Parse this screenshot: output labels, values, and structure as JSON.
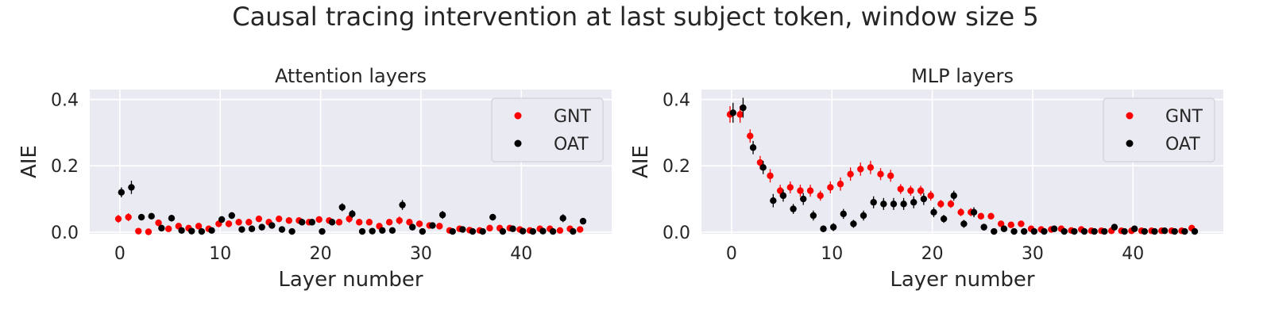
{
  "figure": {
    "title": "Causal tracing intervention at last subject token, window size 5"
  },
  "chart_data": [
    {
      "type": "scatter",
      "title": "Attention layers",
      "xlabel": "Layer number",
      "ylabel": "AIE",
      "xlim": [
        -3,
        49
      ],
      "ylim": [
        -0.005,
        0.43
      ],
      "xticks": [
        0,
        10,
        20,
        30,
        40
      ],
      "yticks": [
        0.0,
        0.2,
        0.4
      ],
      "ytick_labels": [
        "0.0",
        "0.2",
        "0.4"
      ],
      "grid": true,
      "legend_position": "top-right",
      "series": [
        {
          "name": "GNT",
          "color": "#ff0000",
          "x": [
            0,
            1,
            2,
            3,
            4,
            5,
            6,
            7,
            8,
            9,
            10,
            11,
            12,
            13,
            14,
            15,
            16,
            17,
            18,
            19,
            20,
            21,
            22,
            23,
            24,
            25,
            26,
            27,
            28,
            29,
            30,
            31,
            32,
            33,
            34,
            35,
            36,
            37,
            38,
            39,
            40,
            41,
            42,
            43,
            44,
            45,
            46
          ],
          "y": [
            0.04,
            0.045,
            0.003,
            0.001,
            0.028,
            0.01,
            0.018,
            0.012,
            0.018,
            0.01,
            0.025,
            0.025,
            0.03,
            0.03,
            0.04,
            0.03,
            0.04,
            0.035,
            0.035,
            0.03,
            0.038,
            0.035,
            0.03,
            0.04,
            0.03,
            0.03,
            0.018,
            0.03,
            0.035,
            0.03,
            0.025,
            0.02,
            0.018,
            0.005,
            0.01,
            0.006,
            0.005,
            0.012,
            0.012,
            0.012,
            0.008,
            0.005,
            0.01,
            0.01,
            0.005,
            0.01,
            0.008
          ],
          "err": [
            0.012,
            0.012,
            0.005,
            0.005,
            0.01,
            0.008,
            0.008,
            0.008,
            0.008,
            0.008,
            0.01,
            0.01,
            0.01,
            0.01,
            0.01,
            0.01,
            0.01,
            0.01,
            0.01,
            0.01,
            0.01,
            0.01,
            0.01,
            0.012,
            0.01,
            0.01,
            0.008,
            0.01,
            0.012,
            0.01,
            0.01,
            0.008,
            0.008,
            0.006,
            0.006,
            0.006,
            0.006,
            0.008,
            0.008,
            0.008,
            0.006,
            0.006,
            0.006,
            0.006,
            0.006,
            0.006,
            0.006
          ]
        },
        {
          "name": "OAT",
          "color": "#000000",
          "x": [
            0,
            1,
            2,
            3,
            4,
            5,
            6,
            7,
            8,
            9,
            10,
            11,
            12,
            13,
            14,
            15,
            16,
            17,
            18,
            19,
            20,
            21,
            22,
            23,
            24,
            25,
            26,
            27,
            28,
            29,
            30,
            31,
            32,
            33,
            34,
            35,
            36,
            37,
            38,
            39,
            40,
            41,
            42,
            43,
            44,
            45,
            46
          ],
          "y": [
            0.12,
            0.135,
            0.045,
            0.048,
            0.012,
            0.042,
            0.005,
            0.003,
            0.002,
            0.005,
            0.038,
            0.05,
            0.008,
            0.01,
            0.015,
            0.02,
            0.008,
            0.002,
            0.03,
            0.03,
            0.002,
            0.03,
            0.075,
            0.055,
            0.002,
            0.003,
            0.005,
            0.005,
            0.082,
            0.015,
            0.002,
            0.02,
            0.052,
            0.002,
            0.008,
            0.002,
            0.002,
            0.045,
            0.002,
            0.01,
            0.003,
            0.002,
            0.003,
            0.002,
            0.042,
            0.002,
            0.033
          ],
          "err": [
            0.015,
            0.02,
            0.008,
            0.008,
            0.006,
            0.01,
            0.005,
            0.005,
            0.005,
            0.005,
            0.01,
            0.01,
            0.006,
            0.006,
            0.008,
            0.008,
            0.006,
            0.005,
            0.01,
            0.01,
            0.005,
            0.01,
            0.012,
            0.012,
            0.005,
            0.005,
            0.005,
            0.005,
            0.015,
            0.008,
            0.005,
            0.008,
            0.012,
            0.005,
            0.005,
            0.005,
            0.005,
            0.01,
            0.005,
            0.006,
            0.005,
            0.005,
            0.005,
            0.005,
            0.012,
            0.005,
            0.01
          ]
        }
      ]
    },
    {
      "type": "scatter",
      "title": "MLP layers",
      "xlabel": "Layer number",
      "ylabel": "AIE",
      "xlim": [
        -3,
        49
      ],
      "ylim": [
        -0.005,
        0.43
      ],
      "xticks": [
        0,
        10,
        20,
        30,
        40
      ],
      "yticks": [
        0.0,
        0.2,
        0.4
      ],
      "ytick_labels": [
        "0.0",
        "0.2",
        "0.4"
      ],
      "grid": true,
      "legend_position": "top-right",
      "series": [
        {
          "name": "GNT",
          "color": "#ff0000",
          "x": [
            0,
            1,
            2,
            3,
            4,
            5,
            6,
            7,
            8,
            9,
            10,
            11,
            12,
            13,
            14,
            15,
            16,
            17,
            18,
            19,
            20,
            21,
            22,
            23,
            24,
            25,
            26,
            27,
            28,
            29,
            30,
            31,
            32,
            33,
            34,
            35,
            36,
            37,
            38,
            39,
            40,
            41,
            42,
            43,
            44,
            45,
            46
          ],
          "y": [
            0.355,
            0.355,
            0.29,
            0.21,
            0.17,
            0.125,
            0.135,
            0.125,
            0.125,
            0.11,
            0.135,
            0.145,
            0.175,
            0.19,
            0.195,
            0.175,
            0.17,
            0.13,
            0.125,
            0.125,
            0.11,
            0.085,
            0.085,
            0.06,
            0.06,
            0.048,
            0.048,
            0.025,
            0.022,
            0.025,
            0.01,
            0.008,
            0.008,
            0.01,
            0.005,
            0.008,
            0.004,
            0.004,
            0.004,
            0.004,
            0.004,
            0.004,
            0.004,
            0.004,
            0.004,
            0.004,
            0.012
          ],
          "err": [
            0.025,
            0.025,
            0.02,
            0.02,
            0.02,
            0.018,
            0.018,
            0.018,
            0.018,
            0.015,
            0.018,
            0.02,
            0.02,
            0.02,
            0.02,
            0.018,
            0.018,
            0.015,
            0.015,
            0.015,
            0.015,
            0.012,
            0.012,
            0.012,
            0.012,
            0.01,
            0.01,
            0.008,
            0.008,
            0.008,
            0.006,
            0.006,
            0.006,
            0.006,
            0.005,
            0.005,
            0.005,
            0.005,
            0.005,
            0.005,
            0.005,
            0.005,
            0.005,
            0.005,
            0.005,
            0.005,
            0.006
          ]
        },
        {
          "name": "OAT",
          "color": "#000000",
          "x": [
            0,
            1,
            2,
            3,
            4,
            5,
            6,
            7,
            8,
            9,
            10,
            11,
            12,
            13,
            14,
            15,
            16,
            17,
            18,
            19,
            20,
            21,
            22,
            23,
            24,
            25,
            26,
            27,
            28,
            29,
            30,
            31,
            32,
            33,
            34,
            35,
            36,
            37,
            38,
            39,
            40,
            41,
            42,
            43,
            44,
            45,
            46
          ],
          "y": [
            0.36,
            0.375,
            0.255,
            0.195,
            0.095,
            0.11,
            0.07,
            0.1,
            0.05,
            0.01,
            0.015,
            0.055,
            0.025,
            0.05,
            0.09,
            0.085,
            0.085,
            0.085,
            0.09,
            0.1,
            0.06,
            0.04,
            0.11,
            0.025,
            0.06,
            0.015,
            0.002,
            0.01,
            0.002,
            0.002,
            0.002,
            0.002,
            0.01,
            0.002,
            0.002,
            0.002,
            0.002,
            0.002,
            0.015,
            0.002,
            0.01,
            0.002,
            0.002,
            0.004,
            0.002,
            0.002,
            0.002
          ],
          "err": [
            0.03,
            0.03,
            0.02,
            0.02,
            0.02,
            0.018,
            0.015,
            0.018,
            0.015,
            0.01,
            0.012,
            0.015,
            0.012,
            0.015,
            0.018,
            0.018,
            0.018,
            0.018,
            0.018,
            0.018,
            0.015,
            0.012,
            0.015,
            0.012,
            0.015,
            0.01,
            0.005,
            0.008,
            0.005,
            0.005,
            0.005,
            0.005,
            0.008,
            0.005,
            0.005,
            0.005,
            0.005,
            0.005,
            0.01,
            0.005,
            0.008,
            0.005,
            0.005,
            0.005,
            0.005,
            0.005,
            0.005
          ]
        }
      ]
    }
  ]
}
